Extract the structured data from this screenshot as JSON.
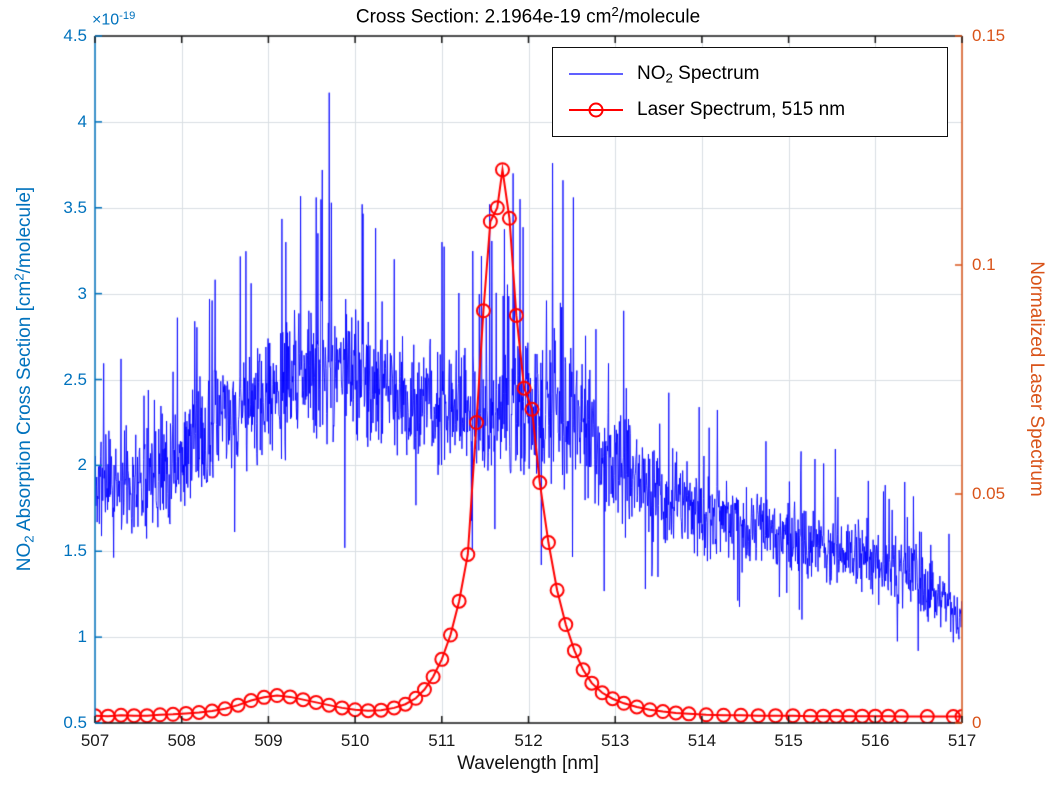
{
  "title": {
    "p1": "Cross Section: 2.1964e-19 cm",
    "sup": "2",
    "p2": "/molecule"
  },
  "x_axis": {
    "label": "Wavelength [nm]",
    "ticks": [
      "507",
      "508",
      "509",
      "510",
      "511",
      "512",
      "513",
      "514",
      "515",
      "516",
      "517"
    ],
    "tick_values": [
      507,
      508,
      509,
      510,
      511,
      512,
      513,
      514,
      515,
      516,
      517
    ],
    "min": 507,
    "max": 517
  },
  "y_left": {
    "label": {
      "p1": "NO",
      "sub": "2",
      "p2": " Absorption Cross Section [cm",
      "sup": "2",
      "p3": "/molecule]"
    },
    "multiplier": {
      "base": "×10",
      "exp": "-19"
    },
    "ticks": [
      "0.5",
      "1",
      "1.5",
      "2",
      "2.5",
      "3",
      "3.5",
      "4",
      "4.5"
    ],
    "tick_values": [
      0.5,
      1,
      1.5,
      2,
      2.5,
      3,
      3.5,
      4,
      4.5
    ],
    "min": 0.5,
    "max": 4.5,
    "color": "#0072BD"
  },
  "y_right": {
    "label": "Normalized Laser Spectrum",
    "ticks": [
      "0",
      "0.05",
      "0.1",
      "0.15"
    ],
    "tick_values": [
      0,
      0.05,
      0.1,
      0.15
    ],
    "min": 0,
    "max": 0.15,
    "color": "#D95319"
  },
  "legend": {
    "entry1": {
      "p1": "NO",
      "sub": "2",
      "p2": " Spectrum"
    },
    "entry2": {
      "label": "Laser Spectrum, 515 nm"
    }
  },
  "colors": {
    "no2_line": "#0000FF",
    "laser_line": "#FF0000",
    "grid": "#D9DEE3",
    "axis_box": "#151515",
    "background": "#FFFFFF"
  },
  "chart_data": {
    "type": "line",
    "title": "Cross Section: 2.1964e-19 cm^2/molecule",
    "xlabel": "Wavelength [nm]",
    "x_range": [
      507,
      517
    ],
    "grid": true,
    "legend_position": "north",
    "series": [
      {
        "name": "NO2 Spectrum",
        "axis": "left",
        "ylabel": "NO2 Absorption Cross Section [cm^2/molecule], x10^-19",
        "y_range": [
          0.5,
          4.5
        ],
        "color": "#0000FF",
        "line_width": 0.85,
        "representation": "dense noisy spectrum described by envelope mean/spread plus explicit peak and dip spikes; noise regenerated with seeded PRNG",
        "envelope_x": [
          507,
          507.6,
          508,
          508.5,
          509,
          509.5,
          509.8,
          510.2,
          510.8,
          511.5,
          512,
          512.5,
          513,
          513.5,
          514,
          514.5,
          515,
          515.5,
          516,
          516.5,
          517
        ],
        "envelope_mean": [
          1.9,
          1.92,
          2.05,
          2.3,
          2.4,
          2.55,
          2.55,
          2.45,
          2.35,
          2.3,
          2.3,
          2.25,
          2.0,
          1.8,
          1.72,
          1.65,
          1.58,
          1.5,
          1.45,
          1.32,
          1.12
        ],
        "envelope_spread": [
          0.28,
          0.28,
          0.3,
          0.32,
          0.33,
          0.38,
          0.38,
          0.35,
          0.33,
          0.35,
          0.38,
          0.38,
          0.3,
          0.25,
          0.22,
          0.22,
          0.2,
          0.2,
          0.2,
          0.18,
          0.15
        ],
        "peaks": [
          [
            507.3,
            2.62
          ],
          [
            507.95,
            2.86
          ],
          [
            508.35,
            2.96
          ],
          [
            508.8,
            3.06
          ],
          [
            509.2,
            3.3
          ],
          [
            509.55,
            3.56
          ],
          [
            509.62,
            3.72
          ],
          [
            509.7,
            4.17
          ],
          [
            510.08,
            3.52
          ],
          [
            510.45,
            3.2
          ],
          [
            511.0,
            3.3
          ],
          [
            511.55,
            3.52
          ],
          [
            511.82,
            3.7
          ],
          [
            511.9,
            3.55
          ],
          [
            512.28,
            3.76
          ],
          [
            512.4,
            3.66
          ],
          [
            512.52,
            3.56
          ],
          [
            513.1,
            2.9
          ]
        ],
        "dips": [
          [
            509.88,
            1.52
          ],
          [
            511.35,
            1.5
          ],
          [
            512.15,
            1.42
          ],
          [
            513.35,
            1.28
          ],
          [
            516.9,
            0.97
          ]
        ],
        "n_points": 2000,
        "seed": 11
      },
      {
        "name": "Laser Spectrum, 515 nm",
        "axis": "right",
        "ylabel": "Normalized Laser Spectrum",
        "y_range": [
          0,
          0.15
        ],
        "color": "#FF0000",
        "line_width": 2,
        "marker": "circle",
        "marker_size": 13,
        "points": [
          [
            507.0,
            0.0016
          ],
          [
            507.15,
            0.0015
          ],
          [
            507.3,
            0.0017
          ],
          [
            507.45,
            0.0016
          ],
          [
            507.6,
            0.0016
          ],
          [
            507.75,
            0.0018
          ],
          [
            507.9,
            0.0019
          ],
          [
            508.05,
            0.0021
          ],
          [
            508.2,
            0.0023
          ],
          [
            508.35,
            0.0026
          ],
          [
            508.5,
            0.0031
          ],
          [
            508.65,
            0.0039
          ],
          [
            508.8,
            0.0049
          ],
          [
            508.95,
            0.0056
          ],
          [
            509.1,
            0.006
          ],
          [
            509.25,
            0.0057
          ],
          [
            509.4,
            0.0051
          ],
          [
            509.55,
            0.0045
          ],
          [
            509.7,
            0.0039
          ],
          [
            509.85,
            0.0033
          ],
          [
            510.0,
            0.0029
          ],
          [
            510.15,
            0.0027
          ],
          [
            510.3,
            0.0028
          ],
          [
            510.45,
            0.0033
          ],
          [
            510.58,
            0.0041
          ],
          [
            510.7,
            0.0054
          ],
          [
            510.8,
            0.0073
          ],
          [
            510.9,
            0.0101
          ],
          [
            511.0,
            0.0139
          ],
          [
            511.1,
            0.0192
          ],
          [
            511.2,
            0.0266
          ],
          [
            511.3,
            0.0368
          ],
          [
            511.4,
            0.0656
          ],
          [
            511.48,
            0.09
          ],
          [
            511.56,
            0.1095
          ],
          [
            511.64,
            0.1125
          ],
          [
            511.7,
            0.1208
          ],
          [
            511.78,
            0.1102
          ],
          [
            511.86,
            0.089
          ],
          [
            511.95,
            0.0731
          ],
          [
            512.04,
            0.0685
          ],
          [
            512.13,
            0.0525
          ],
          [
            512.23,
            0.0394
          ],
          [
            512.33,
            0.029
          ],
          [
            512.43,
            0.0215
          ],
          [
            512.53,
            0.0158
          ],
          [
            512.63,
            0.0116
          ],
          [
            512.73,
            0.0087
          ],
          [
            512.85,
            0.0066
          ],
          [
            512.97,
            0.0053
          ],
          [
            513.1,
            0.0043
          ],
          [
            513.25,
            0.0035
          ],
          [
            513.4,
            0.0029
          ],
          [
            513.55,
            0.0025
          ],
          [
            513.7,
            0.0022
          ],
          [
            513.85,
            0.002
          ],
          [
            514.05,
            0.0018
          ],
          [
            514.25,
            0.0017
          ],
          [
            514.45,
            0.0017
          ],
          [
            514.65,
            0.0016
          ],
          [
            514.85,
            0.0016
          ],
          [
            515.05,
            0.0016
          ],
          [
            515.25,
            0.0015
          ],
          [
            515.4,
            0.0015
          ],
          [
            515.55,
            0.0015
          ],
          [
            515.7,
            0.0015
          ],
          [
            515.85,
            0.0015
          ],
          [
            516.0,
            0.0015
          ],
          [
            516.15,
            0.0015
          ],
          [
            516.3,
            0.0014
          ],
          [
            516.6,
            0.0014
          ],
          [
            516.9,
            0.0014
          ],
          [
            517.0,
            0.0014
          ]
        ]
      }
    ]
  }
}
